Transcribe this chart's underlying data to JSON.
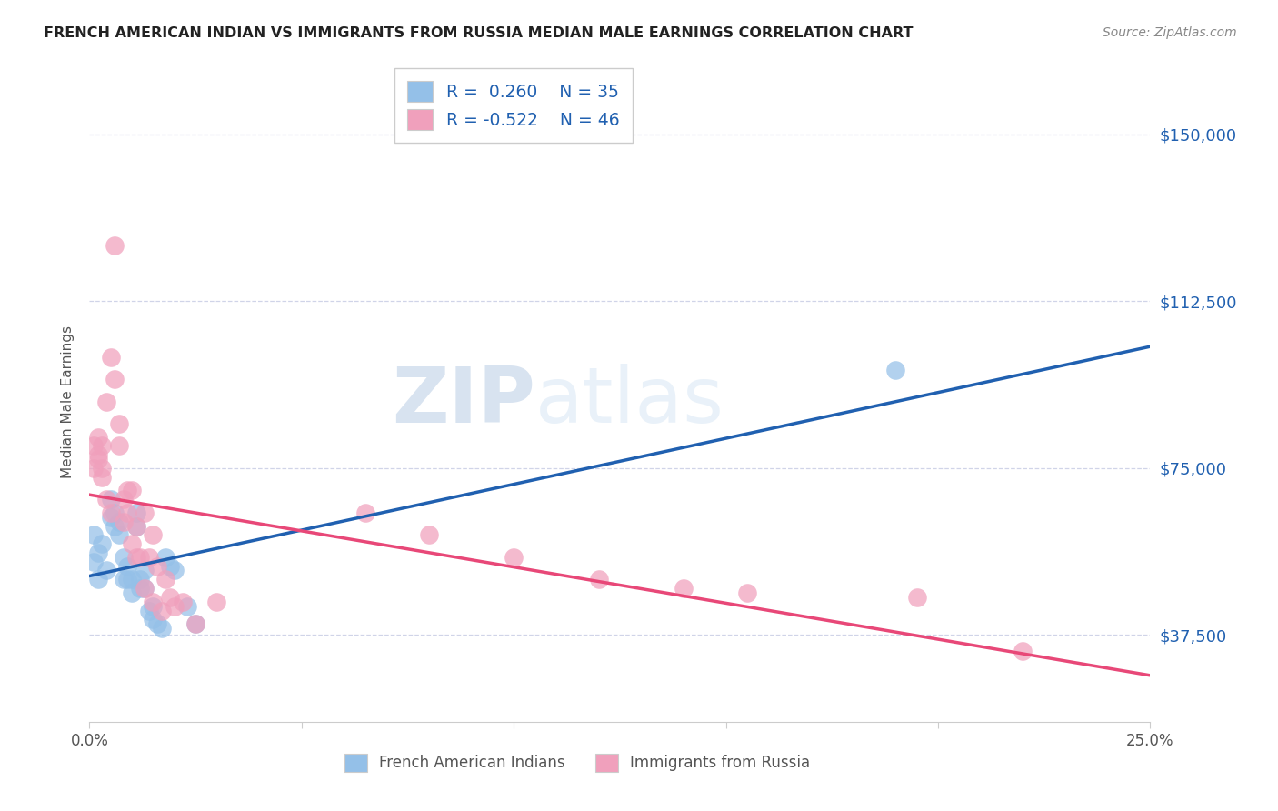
{
  "title": "FRENCH AMERICAN INDIAN VS IMMIGRANTS FROM RUSSIA MEDIAN MALE EARNINGS CORRELATION CHART",
  "source": "Source: ZipAtlas.com",
  "ylabel": "Median Male Earnings",
  "xlim": [
    0.0,
    0.25
  ],
  "ylim": [
    18000,
    162000
  ],
  "yticks": [
    37500,
    75000,
    112500,
    150000
  ],
  "ytick_labels": [
    "$37,500",
    "$75,000",
    "$112,500",
    "$150,000"
  ],
  "xticks": [
    0.0,
    0.05,
    0.1,
    0.15,
    0.2,
    0.25
  ],
  "xtick_labels": [
    "0.0%",
    "",
    "",
    "",
    "",
    "25.0%"
  ],
  "color_blue": "#94c0e8",
  "color_pink": "#f0a0bc",
  "line_color_blue": "#2060b0",
  "line_color_pink": "#e84878",
  "legend_text_color": "#2060b0",
  "ytick_color": "#2060b0",
  "background_color": "#ffffff",
  "grid_color": "#d0d4e8",
  "watermark_zip": "ZIP",
  "watermark_atlas": "atlas",
  "blue_x": [
    0.001,
    0.001,
    0.002,
    0.002,
    0.003,
    0.004,
    0.005,
    0.005,
    0.006,
    0.006,
    0.007,
    0.007,
    0.008,
    0.008,
    0.009,
    0.009,
    0.01,
    0.01,
    0.011,
    0.011,
    0.012,
    0.012,
    0.013,
    0.013,
    0.014,
    0.015,
    0.015,
    0.016,
    0.017,
    0.018,
    0.019,
    0.02,
    0.023,
    0.025,
    0.19
  ],
  "blue_y": [
    54000,
    60000,
    50000,
    56000,
    58000,
    52000,
    68000,
    64000,
    62000,
    65000,
    63000,
    60000,
    55000,
    50000,
    53000,
    50000,
    50000,
    47000,
    65000,
    62000,
    50000,
    48000,
    52000,
    48000,
    43000,
    44000,
    41000,
    40000,
    39000,
    55000,
    53000,
    52000,
    44000,
    40000,
    97000
  ],
  "pink_x": [
    0.001,
    0.001,
    0.002,
    0.002,
    0.002,
    0.003,
    0.003,
    0.003,
    0.004,
    0.004,
    0.005,
    0.005,
    0.006,
    0.006,
    0.007,
    0.007,
    0.008,
    0.008,
    0.009,
    0.009,
    0.01,
    0.01,
    0.011,
    0.011,
    0.012,
    0.013,
    0.013,
    0.014,
    0.015,
    0.015,
    0.016,
    0.017,
    0.018,
    0.019,
    0.02,
    0.022,
    0.025,
    0.03,
    0.065,
    0.08,
    0.1,
    0.12,
    0.14,
    0.155,
    0.195,
    0.22
  ],
  "pink_y": [
    80000,
    75000,
    78000,
    82000,
    77000,
    80000,
    75000,
    73000,
    68000,
    90000,
    100000,
    65000,
    125000,
    95000,
    85000,
    80000,
    68000,
    63000,
    70000,
    65000,
    70000,
    58000,
    62000,
    55000,
    55000,
    65000,
    48000,
    55000,
    60000,
    45000,
    53000,
    43000,
    50000,
    46000,
    44000,
    45000,
    40000,
    45000,
    65000,
    60000,
    55000,
    50000,
    48000,
    47000,
    46000,
    34000
  ]
}
